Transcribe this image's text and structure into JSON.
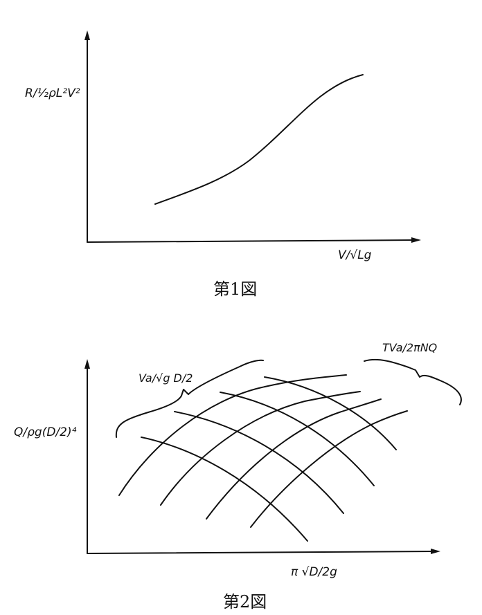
{
  "figure1": {
    "ylabel": "R/½ρL²V²",
    "xlabel": "V/√Lg",
    "caption": "第1図"
  },
  "figure2": {
    "ylabel": "Q/ρg(D/2)⁴",
    "xlabel": "π √D/2g",
    "family_a_label": "Va/√g D/2",
    "family_b_label": "TVa/2πNQ",
    "caption": "第2図"
  }
}
